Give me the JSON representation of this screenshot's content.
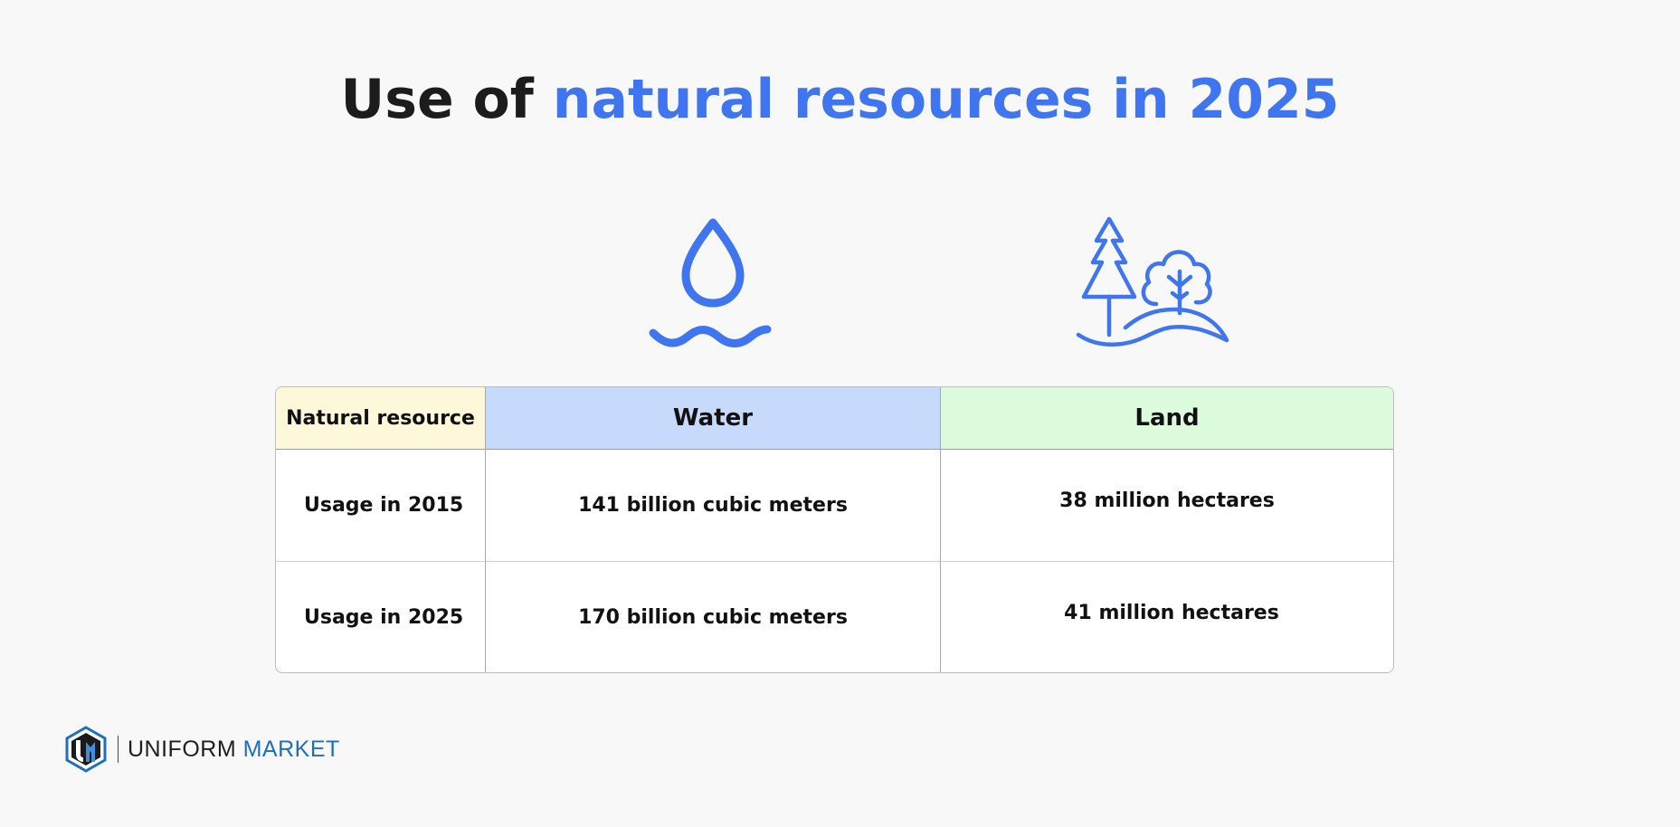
{
  "title": {
    "prefix": "Use of ",
    "highlight": "natural resources in 2025"
  },
  "icons": {
    "water": "water-drop-waves-icon",
    "land": "trees-hill-icon"
  },
  "table": {
    "header": {
      "resource": "Natural resource",
      "water": "Water",
      "land": "Land"
    },
    "rows": [
      {
        "label": "Usage in 2015",
        "water": "141 billion cubic meters",
        "land": "38 million hectares"
      },
      {
        "label": "Usage in 2025",
        "water": "170 billion cubic meters",
        "land": "41 million hectares"
      }
    ]
  },
  "logo": {
    "word1": "UNIFORM",
    "word2": "MARKET"
  },
  "colors": {
    "accent": "#3f76ef",
    "water_header": "#c8dafc",
    "land_header": "#dcfadc",
    "resource_header": "#fdf8d9",
    "logo_blue": "#1d6fc0"
  }
}
